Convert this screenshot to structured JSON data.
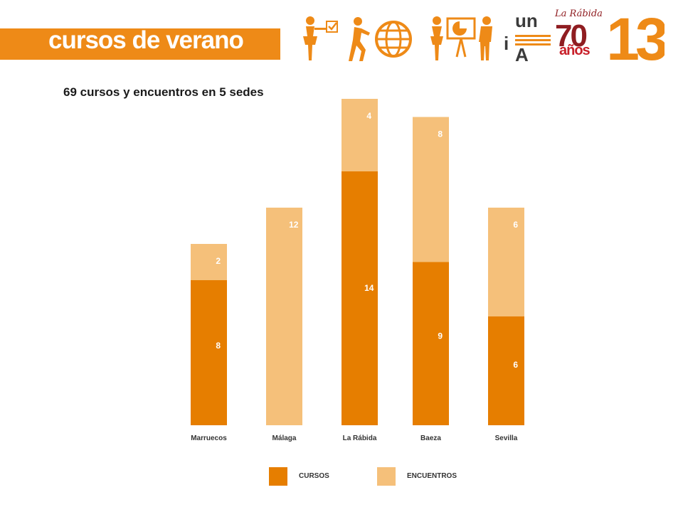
{
  "header": {
    "title": "cursos de verano",
    "logo_una": {
      "line1": "un",
      "line2": "i",
      "line3": "A"
    },
    "logo_rabida": {
      "script": "La Rábida",
      "number": "70",
      "word": "años"
    },
    "badge_number": "13"
  },
  "colors": {
    "brand_orange": "#ee8a17",
    "cursos": "#e67e00",
    "encuentros": "#f5c07a"
  },
  "chart_data": {
    "type": "bar",
    "stacked": true,
    "title": "69 cursos y encuentros en 5 sedes",
    "categories": [
      "Marruecos",
      "Málaga",
      "La Rábida",
      "Baeza",
      "Sevilla"
    ],
    "series": [
      {
        "name": "CURSOS",
        "values": [
          8,
          0,
          14,
          9,
          6
        ]
      },
      {
        "name": "ENCUENTROS",
        "values": [
          2,
          12,
          4,
          8,
          6
        ]
      }
    ],
    "grid": false,
    "legend": "bottom"
  }
}
